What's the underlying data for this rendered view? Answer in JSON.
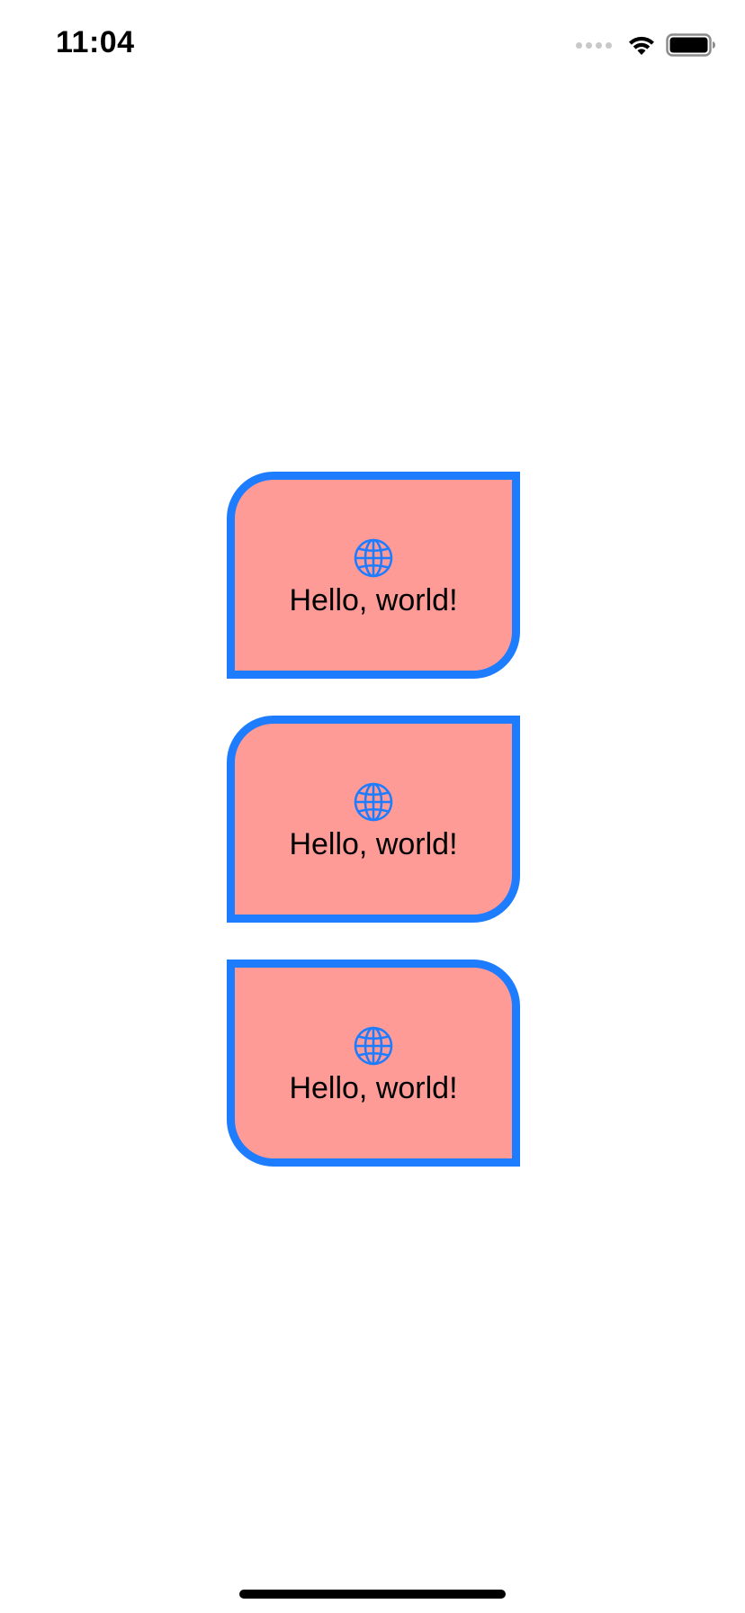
{
  "status_bar": {
    "time": "11:04",
    "signal_icon": "cellular-signal-dots",
    "wifi_icon": "wifi-icon",
    "battery_icon": "battery-icon"
  },
  "colors": {
    "card_fill": "#ff9b96",
    "card_border": "#1e7cff",
    "globe": "#1e7cff",
    "text": "#000000",
    "background": "#ffffff"
  },
  "cards": [
    {
      "icon": "globe-icon",
      "text": "Hello, world!"
    },
    {
      "icon": "globe-icon",
      "text": "Hello, world!"
    },
    {
      "icon": "globe-icon",
      "text": "Hello, world!"
    }
  ]
}
